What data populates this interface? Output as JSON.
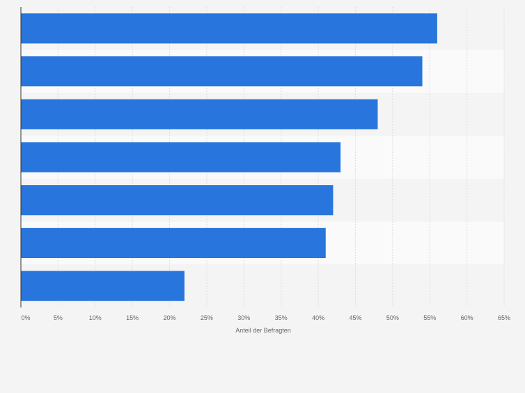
{
  "chart_data": {
    "type": "bar",
    "orientation": "horizontal",
    "categories": [
      "",
      "",
      "",
      "",
      "",
      "",
      ""
    ],
    "values": [
      56,
      54,
      48,
      43,
      42,
      41,
      22
    ],
    "x_ticks": [
      "0%",
      "5%",
      "10%",
      "15%",
      "20%",
      "25%",
      "30%",
      "35%",
      "40%",
      "45%",
      "50%",
      "55%",
      "60%",
      "65%"
    ],
    "xlim": [
      0,
      65
    ],
    "xlabel": "Anteil der Befragten",
    "ylabel": "",
    "title": "",
    "grid": true,
    "legend": "none",
    "colors": {
      "bar": "#2876dd",
      "background": "#f4f4f4",
      "band_light": "#fafafa",
      "band_dark": "#f4f4f4",
      "grid": "#dcdcdc",
      "axis": "#333333",
      "tick_text": "#666666"
    }
  }
}
